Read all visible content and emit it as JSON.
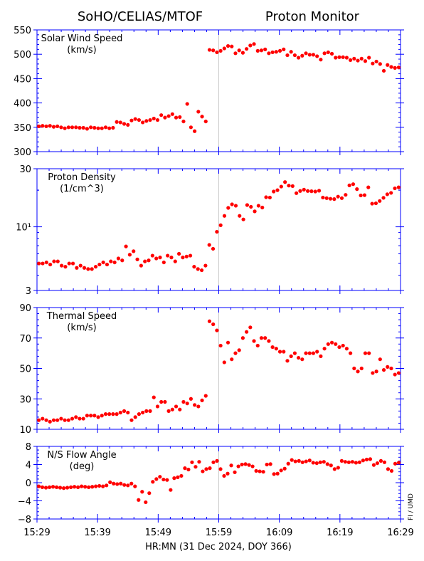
{
  "header": {
    "title_left": "SoHO/CELIAS/MTOF",
    "title_right": "Proton Monitor"
  },
  "credit": "FI / UMD",
  "colors": {
    "frame": "#0000ff",
    "points": "#ff0000",
    "marker_line": "#cccccc"
  },
  "chart_data": {
    "type": "scatter",
    "xlabel": "HR:MN (31 Dec 2024, DOY 366)",
    "x_ticks": [
      "15:29",
      "15:39",
      "15:49",
      "15:59",
      "16:09",
      "16:19",
      "16:29"
    ],
    "x_range_minutes": [
      0,
      60
    ],
    "marker_at_minute": 30,
    "panels": [
      {
        "id": "speed",
        "label_lines": [
          "Solar Wind Speed",
          "(km/s)"
        ],
        "scale": "linear",
        "ylim": [
          300,
          550
        ],
        "y_ticks": [
          300,
          350,
          400,
          450,
          500,
          550
        ],
        "y_tick_labels": [
          "300",
          "350",
          "400",
          "450",
          "500",
          "550"
        ],
        "values": [
          352,
          353,
          352,
          353,
          351,
          352,
          350,
          348,
          350,
          350,
          350,
          349,
          349,
          347,
          350,
          349,
          348,
          348,
          350,
          348,
          349,
          361,
          360,
          357,
          355,
          364,
          367,
          365,
          360,
          363,
          365,
          368,
          365,
          375,
          370,
          373,
          377,
          370,
          371,
          362,
          398,
          350,
          342,
          382,
          372,
          362,
          509,
          508,
          504,
          507,
          512,
          517,
          516,
          502,
          508,
          503,
          511,
          518,
          521,
          507,
          508,
          510,
          502,
          504,
          505,
          507,
          510,
          498,
          505,
          498,
          493,
          497,
          502,
          499,
          499,
          496,
          489,
          502,
          504,
          501,
          493,
          494,
          494,
          493,
          488,
          491,
          487,
          491,
          486,
          493,
          481,
          485,
          480,
          466,
          478,
          474,
          472,
          473
        ]
      },
      {
        "id": "density",
        "label_lines": [
          "Proton Density",
          "(1/cm^3)"
        ],
        "scale": "log",
        "ylim": [
          3,
          30
        ],
        "y_ticks": [
          3,
          10,
          30
        ],
        "y_tick_labels": [
          "3",
          "10¹",
          "30"
        ],
        "values": [
          5.0,
          5.0,
          5.1,
          4.9,
          5.2,
          5.2,
          4.8,
          4.7,
          5.0,
          5.0,
          4.6,
          4.8,
          4.6,
          4.5,
          4.5,
          4.7,
          4.9,
          5.1,
          4.9,
          5.2,
          5.1,
          5.5,
          5.3,
          6.9,
          5.9,
          6.3,
          5.4,
          4.8,
          5.2,
          5.3,
          5.8,
          5.5,
          5.6,
          5.1,
          5.8,
          5.6,
          5.2,
          6.0,
          5.6,
          5.7,
          5.8,
          4.7,
          4.5,
          4.4,
          4.8,
          7.1,
          6.6,
          9.1,
          10.3,
          12.3,
          14.3,
          15.3,
          14.9,
          12.3,
          11.5,
          15.1,
          14.6,
          13.4,
          14.9,
          14.4,
          17.5,
          17.4,
          19.5,
          20.0,
          21.4,
          23.3,
          21.8,
          21.6,
          18.9,
          19.7,
          20.2,
          19.7,
          19.6,
          19.5,
          19.8,
          17.4,
          17.2,
          17.0,
          16.9,
          17.7,
          17.2,
          18.3,
          21.9,
          22.4,
          20.4,
          18.1,
          18.2,
          21.1,
          15.5,
          15.6,
          16.3,
          17.3,
          18.5,
          19.0,
          20.7,
          21.1
        ]
      },
      {
        "id": "thermal",
        "label_lines": [
          "Thermal Speed",
          "(km/s)"
        ],
        "scale": "linear",
        "ylim": [
          10,
          90
        ],
        "y_ticks": [
          10,
          30,
          50,
          70,
          90
        ],
        "y_tick_labels": [
          "10",
          "30",
          "50",
          "70",
          "90"
        ],
        "values": [
          16,
          17,
          16,
          15,
          16,
          16,
          17,
          16,
          16,
          17,
          18,
          17,
          17,
          19,
          19,
          19,
          18,
          19,
          20,
          20,
          20,
          20,
          21,
          22,
          21,
          16,
          18,
          20,
          21,
          22,
          22,
          31,
          25,
          28,
          28,
          22,
          23,
          25,
          23,
          28,
          27,
          30,
          26,
          25,
          29,
          32,
          81,
          79,
          75,
          65,
          54,
          67,
          56,
          60,
          62,
          70,
          74,
          77,
          68,
          65,
          70,
          70,
          68,
          64,
          63,
          61,
          61,
          55,
          58,
          60,
          57,
          56,
          60,
          60,
          60,
          61,
          58,
          63,
          66,
          67,
          66,
          64,
          65,
          63,
          60,
          50,
          48,
          50,
          60,
          60,
          47,
          48,
          56,
          49,
          51,
          50,
          46,
          47
        ]
      },
      {
        "id": "angle",
        "label_lines": [
          "N/S Flow Angle",
          "(deg)"
        ],
        "scale": "linear",
        "ylim": [
          -8,
          8
        ],
        "y_ticks": [
          -8,
          -4,
          0,
          4,
          8
        ],
        "y_tick_labels": [
          "−8",
          "−4",
          "0",
          "4",
          "8"
        ],
        "values": [
          -0.8,
          -1.0,
          -1.1,
          -1.0,
          -0.9,
          -1.0,
          -1.1,
          -1.2,
          -1.1,
          -1.0,
          -0.9,
          -1.0,
          -0.8,
          -0.9,
          -1.0,
          -0.9,
          -0.8,
          -0.7,
          -0.8,
          -0.6,
          0.1,
          -0.2,
          -0.3,
          -0.2,
          -0.5,
          -0.6,
          -0.2,
          -0.8,
          -3.8,
          -2.0,
          -4.3,
          -2.3,
          0.2,
          0.8,
          1.3,
          0.7,
          0.6,
          -1.6,
          1.0,
          1.2,
          1.5,
          3.2,
          2.9,
          4.5,
          3.5,
          4.6,
          2.5,
          3.0,
          3.2,
          4.5,
          4.8,
          3.0,
          1.5,
          2.0,
          3.8,
          2.3,
          3.6,
          4.0,
          4.1,
          3.9,
          3.6,
          2.6,
          2.5,
          2.4,
          4.0,
          4.1,
          1.9,
          2.0,
          2.7,
          3.1,
          4.2,
          5.0,
          4.7,
          4.8,
          4.5,
          4.7,
          4.9,
          4.4,
          4.3,
          4.5,
          4.6,
          4.1,
          3.8,
          3.0,
          3.3,
          4.8,
          4.6,
          4.5,
          4.6,
          4.4,
          4.5,
          4.9,
          5.1,
          5.2,
          3.9,
          4.3,
          4.8,
          4.5,
          3.0,
          2.6,
          4.2,
          4.4
        ]
      }
    ]
  }
}
